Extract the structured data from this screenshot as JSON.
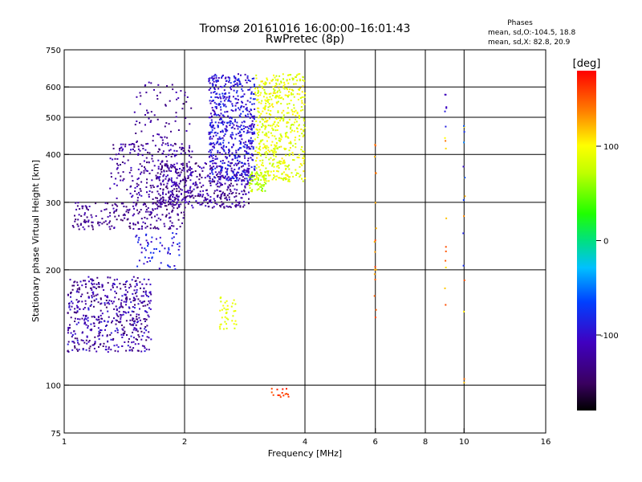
{
  "chart_data": {
    "type": "scatter",
    "title": "Tromsø 20161016 16:00:00–16:01:43",
    "subtitle": "RwPretec (8p)",
    "xlabel": "Frequency [MHz]",
    "ylabel": "Stationary phase Virtual Height [km]",
    "x_scale": "log",
    "y_scale": "log",
    "xlim": [
      1,
      16
    ],
    "ylim": [
      75,
      750
    ],
    "xticks": [
      1,
      2,
      4,
      6,
      8,
      10,
      16
    ],
    "yticks": [
      75,
      100,
      200,
      300,
      400,
      500,
      600,
      750
    ],
    "x_gridlines": [
      2,
      4,
      6,
      8,
      10
    ],
    "y_gridlines": [
      100,
      200,
      300,
      400,
      500,
      600
    ],
    "grid": true,
    "stats": {
      "heading": "Phases",
      "line_o": "mean, sd,O:-104.5, 18.8",
      "line_x": "mean, sd,X:  82.8, 20.9"
    },
    "colorbar": {
      "label": "[deg]",
      "min": -180,
      "max": 180,
      "ticks": [
        100,
        0,
        -100
      ]
    },
    "clusters": [
      {
        "name": "o-low",
        "f": [
          1.02,
          1.65
        ],
        "h": [
          122,
          192
        ],
        "phase": [
          -150,
          -90
        ],
        "n": 520
      },
      {
        "name": "o-f2-lower",
        "f": [
          1.05,
          2.0
        ],
        "h": [
          255,
          300
        ],
        "phase": [
          -150,
          -110
        ],
        "n": 220
      },
      {
        "name": "o-f2-mid",
        "f": [
          1.3,
          2.1
        ],
        "h": [
          300,
          430
        ],
        "phase": [
          -145,
          -100
        ],
        "n": 260
      },
      {
        "name": "o-f2-band",
        "f": [
          1.7,
          2.9
        ],
        "h": [
          290,
          380
        ],
        "phase": [
          -150,
          -100
        ],
        "n": 420
      },
      {
        "name": "o-f2-upper",
        "f": [
          1.5,
          2.1
        ],
        "h": [
          430,
          620
        ],
        "phase": [
          -140,
          -110
        ],
        "n": 70
      },
      {
        "name": "o-f2-cusp",
        "f": [
          2.3,
          3.0
        ],
        "h": [
          340,
          650
        ],
        "phase": [
          -115,
          -75
        ],
        "n": 620
      },
      {
        "name": "o-mid",
        "f": [
          1.5,
          1.95
        ],
        "h": [
          200,
          250
        ],
        "phase": [
          -110,
          -70
        ],
        "n": 60
      },
      {
        "name": "x-f2",
        "f": [
          3.0,
          4.0
        ],
        "h": [
          340,
          650
        ],
        "phase": [
          70,
          110
        ],
        "n": 520
      },
      {
        "name": "x-f2-edge",
        "f": [
          2.9,
          3.2
        ],
        "h": [
          320,
          360
        ],
        "phase": [
          50,
          90
        ],
        "n": 60
      },
      {
        "name": "x-low",
        "f": [
          2.45,
          2.7
        ],
        "h": [
          140,
          170
        ],
        "phase": [
          80,
          100
        ],
        "n": 40
      },
      {
        "name": "x-bottom",
        "f": [
          3.3,
          3.65
        ],
        "h": [
          93,
          98
        ],
        "phase": [
          150,
          175
        ],
        "n": 15
      }
    ],
    "columns": [
      {
        "name": "col-6",
        "f": 6.0,
        "h": [
          150,
          450
        ],
        "phase": [
          120,
          160
        ],
        "n": 18
      },
      {
        "name": "col-9",
        "f": 9.0,
        "h": [
          150,
          620
        ],
        "phase": [
          100,
          160
        ],
        "n": 10
      },
      {
        "name": "col-9-o",
        "f": 9.0,
        "h": [
          470,
          600
        ],
        "phase": [
          -110,
          -80
        ],
        "n": 6
      },
      {
        "name": "col-10",
        "f": 10.0,
        "h": [
          100,
          480
        ],
        "phase": [
          100,
          160
        ],
        "n": 8
      },
      {
        "name": "col-10-o",
        "f": 10.0,
        "h": [
          200,
          480
        ],
        "phase": [
          -110,
          -40
        ],
        "n": 8
      }
    ]
  }
}
